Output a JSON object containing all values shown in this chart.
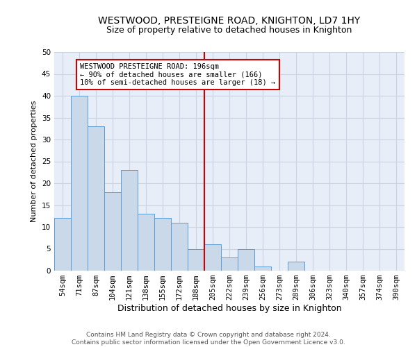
{
  "title": "WESTWOOD, PRESTEIGNE ROAD, KNIGHTON, LD7 1HY",
  "subtitle": "Size of property relative to detached houses in Knighton",
  "xlabel": "Distribution of detached houses by size in Knighton",
  "ylabel": "Number of detached properties",
  "bin_labels": [
    "54sqm",
    "71sqm",
    "87sqm",
    "104sqm",
    "121sqm",
    "138sqm",
    "155sqm",
    "172sqm",
    "188sqm",
    "205sqm",
    "222sqm",
    "239sqm",
    "256sqm",
    "273sqm",
    "289sqm",
    "306sqm",
    "323sqm",
    "340sqm",
    "357sqm",
    "374sqm",
    "390sqm"
  ],
  "bar_values": [
    12,
    40,
    33,
    18,
    23,
    13,
    12,
    11,
    5,
    6,
    3,
    5,
    1,
    0,
    2,
    0,
    0,
    0,
    0,
    0,
    0
  ],
  "bar_color": "#c9d9ea",
  "bar_edge_color": "#5b9bd5",
  "property_line_x": 8.5,
  "annotation_text": "WESTWOOD PRESTEIGNE ROAD: 196sqm\n← 90% of detached houses are smaller (166)\n10% of semi-detached houses are larger (18) →",
  "annotation_box_color": "#ffffff",
  "annotation_box_edge_color": "#cc0000",
  "line_color": "#cc0000",
  "ylim": [
    0,
    50
  ],
  "yticks": [
    0,
    5,
    10,
    15,
    20,
    25,
    30,
    35,
    40,
    45,
    50
  ],
  "grid_color": "#c8d4e4",
  "bg_color": "#e8eef8",
  "footer": "Contains HM Land Registry data © Crown copyright and database right 2024.\nContains public sector information licensed under the Open Government Licence v3.0.",
  "title_fontsize": 10,
  "subtitle_fontsize": 9,
  "xlabel_fontsize": 9,
  "ylabel_fontsize": 8,
  "tick_fontsize": 7.5,
  "annotation_fontsize": 7.5,
  "footer_fontsize": 6.5
}
